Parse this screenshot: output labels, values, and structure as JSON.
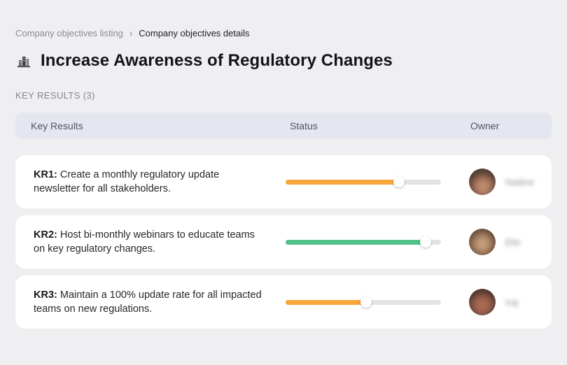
{
  "breadcrumb": {
    "listing": "Company objectives listing",
    "separator": "›",
    "current": "Company objectives details"
  },
  "header": {
    "icon": "buildings-icon",
    "title": "Increase Awareness of Regulatory Changes"
  },
  "section": {
    "label": "KEY RESULTS (3)"
  },
  "table": {
    "columns": {
      "key_results": "Key Results",
      "status": "Status",
      "owner": "Owner"
    },
    "rows": [
      {
        "kr_label": "KR1:",
        "text": "Create a monthly regulatory update newsletter for all stakeholders.",
        "progress": 73,
        "color": "#F9A63C",
        "owner": "Nadine"
      },
      {
        "kr_label": "KR2:",
        "text": "Host bi-monthly webinars to educate teams on key regulatory changes.",
        "progress": 90,
        "color": "#50C28A",
        "owner": "Elie"
      },
      {
        "kr_label": "KR3:",
        "text": "Maintain a 100% update rate for all impacted teams on new regulations.",
        "progress": 52,
        "color": "#F9A63C",
        "owner": "Iraj"
      }
    ]
  },
  "colors": {
    "page_bg": "#EFEFF1",
    "card_bg": "#FFFFFF",
    "table_header_bg": "#E4E7EF",
    "track": "#E3E3E6",
    "accent_orange": "#F9A63C",
    "accent_green": "#50C28A"
  }
}
